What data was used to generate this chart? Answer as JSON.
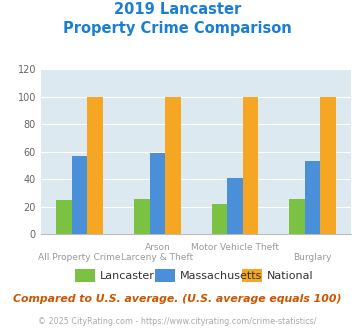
{
  "title_line1": "2019 Lancaster",
  "title_line2": "Property Crime Comparison",
  "lancaster": [
    25,
    26,
    22,
    26
  ],
  "massachusetts": [
    57,
    59,
    41,
    53
  ],
  "national": [
    100,
    100,
    100,
    100
  ],
  "lancaster_color": "#7bc142",
  "massachusetts_color": "#4a90d9",
  "national_color": "#f5a623",
  "ylim": [
    0,
    120
  ],
  "yticks": [
    0,
    20,
    40,
    60,
    80,
    100,
    120
  ],
  "background_color": "#dce9f0",
  "title_color": "#1a7ed4",
  "top_labels": [
    "",
    "Arson",
    "Motor Vehicle Theft",
    ""
  ],
  "bot_labels": [
    "All Property Crime",
    "Larceny & Theft",
    "",
    "Burglary"
  ],
  "footnote": "Compared to U.S. average. (U.S. average equals 100)",
  "copyright": "© 2025 CityRating.com - https://www.cityrating.com/crime-statistics/",
  "legend_labels": [
    "Lancaster",
    "Massachusetts",
    "National"
  ],
  "footnote_color": "#cc5500",
  "copyright_color": "#aaaaaa",
  "xlabel_color": "#999999"
}
